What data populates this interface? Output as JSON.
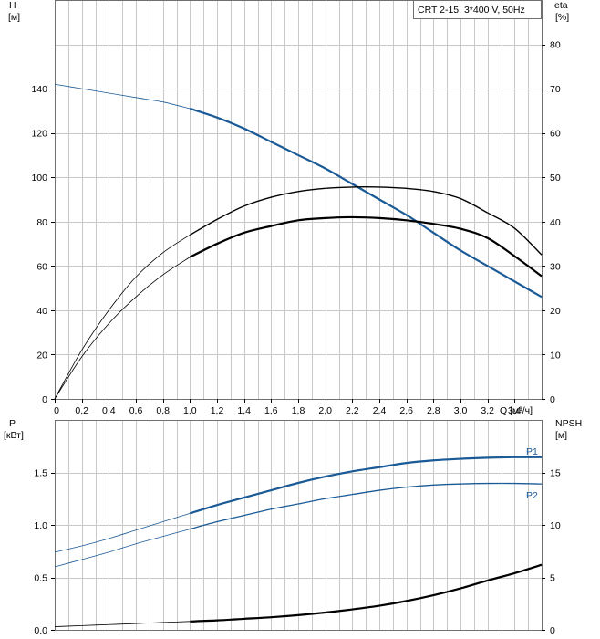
{
  "chart_data": [
    {
      "type": "line",
      "title": "CRT 2-15, 3*400 V, 50Hz",
      "xlabel": "Q [м³/ч]",
      "xlim": [
        0,
        3.6
      ],
      "x_ticks": [
        "0",
        "0,2",
        "0,4",
        "0,6",
        "0,8",
        "1,0",
        "1,2",
        "1,4",
        "1,6",
        "1,8",
        "2,0",
        "2,2",
        "2,4",
        "2,6",
        "2,8",
        "3,0",
        "3,2",
        "3,4"
      ],
      "ylabel_left": [
        "H",
        "[м]"
      ],
      "ylim_left": [
        0,
        180
      ],
      "y_ticks_left": [
        "0",
        "20",
        "40",
        "60",
        "80",
        "100",
        "120",
        "140"
      ],
      "ylabel_right": [
        "eta",
        "[%]"
      ],
      "ylim_right": [
        0,
        90
      ],
      "y_ticks_right": [
        "0",
        "10",
        "20",
        "30",
        "40",
        "50",
        "60",
        "70",
        "80"
      ],
      "grid": true,
      "series": [
        {
          "axis": "left",
          "color": "#1a5a96",
          "x": [
            0,
            0.2,
            0.4,
            0.6,
            0.8,
            1.0,
            1.2,
            1.4,
            1.6,
            1.8,
            2.0,
            2.2,
            2.4,
            2.6,
            2.8,
            3.0,
            3.2,
            3.4,
            3.6
          ],
          "values": [
            142,
            140,
            138,
            136,
            134,
            131,
            127,
            122,
            116,
            110,
            104,
            97,
            90,
            83,
            75,
            67,
            60,
            53,
            46
          ]
        },
        {
          "axis": "right",
          "color": "#000000",
          "x": [
            0,
            0.2,
            0.4,
            0.6,
            0.8,
            1.0,
            1.2,
            1.4,
            1.6,
            1.8,
            2.0,
            2.2,
            2.4,
            2.6,
            2.8,
            3.0,
            3.2,
            3.4,
            3.6
          ],
          "values": [
            0,
            11,
            20,
            27.5,
            33,
            37,
            40.5,
            43.5,
            45.5,
            46.8,
            47.5,
            47.8,
            47.8,
            47.5,
            46.8,
            45.2,
            42,
            38.5,
            32.5
          ]
        },
        {
          "axis": "right",
          "color": "#000000",
          "x": [
            0,
            0.2,
            0.4,
            0.6,
            0.8,
            1.0,
            1.2,
            1.4,
            1.6,
            1.8,
            2.0,
            2.2,
            2.4,
            2.6,
            2.8,
            3.0,
            3.2,
            3.4,
            3.6
          ],
          "values": [
            0,
            9.5,
            17,
            23,
            28,
            32,
            35,
            37.5,
            39,
            40.3,
            40.8,
            41,
            40.8,
            40.3,
            39.5,
            38.4,
            36.3,
            32.2,
            27.7
          ]
        }
      ]
    },
    {
      "type": "line",
      "xlim": [
        0,
        3.6
      ],
      "ylabel_left": [
        "P",
        "[кВт]"
      ],
      "ylim_left": [
        0,
        2.0
      ],
      "y_ticks_left": [
        "0.0",
        "0.5",
        "1.0",
        "1.5"
      ],
      "ylabel_right": [
        "NPSH",
        "[м]"
      ],
      "ylim_right": [
        0,
        20
      ],
      "y_ticks_right": [
        "0",
        "5",
        "10",
        "15"
      ],
      "grid": true,
      "series": [
        {
          "name": "P1",
          "axis": "left",
          "color": "#1a5a96",
          "x": [
            0,
            0.2,
            0.4,
            0.6,
            0.8,
            1.0,
            1.2,
            1.4,
            1.6,
            1.8,
            2.0,
            2.2,
            2.4,
            2.6,
            2.8,
            3.0,
            3.2,
            3.4,
            3.6
          ],
          "values": [
            0.74,
            0.8,
            0.87,
            0.95,
            1.03,
            1.11,
            1.19,
            1.26,
            1.33,
            1.4,
            1.46,
            1.51,
            1.55,
            1.59,
            1.615,
            1.63,
            1.64,
            1.645,
            1.645
          ]
        },
        {
          "name": "P2",
          "axis": "left",
          "color": "#1a5a96",
          "x": [
            0,
            0.2,
            0.4,
            0.6,
            0.8,
            1.0,
            1.2,
            1.4,
            1.6,
            1.8,
            2.0,
            2.2,
            2.4,
            2.6,
            2.8,
            3.0,
            3.2,
            3.4,
            3.6
          ],
          "values": [
            0.6,
            0.67,
            0.74,
            0.82,
            0.89,
            0.96,
            1.03,
            1.09,
            1.15,
            1.2,
            1.25,
            1.29,
            1.33,
            1.36,
            1.38,
            1.39,
            1.395,
            1.395,
            1.39
          ]
        },
        {
          "axis": "right",
          "color": "#000000",
          "x": [
            0,
            0.2,
            0.4,
            0.6,
            0.8,
            1.0,
            1.2,
            1.4,
            1.6,
            1.8,
            2.0,
            2.2,
            2.4,
            2.6,
            2.8,
            3.0,
            3.2,
            3.4,
            3.6
          ],
          "values": [
            0.3,
            0.4,
            0.5,
            0.6,
            0.7,
            0.8,
            0.9,
            1.05,
            1.2,
            1.4,
            1.65,
            1.95,
            2.3,
            2.75,
            3.3,
            3.95,
            4.7,
            5.4,
            6.2
          ]
        }
      ]
    }
  ]
}
